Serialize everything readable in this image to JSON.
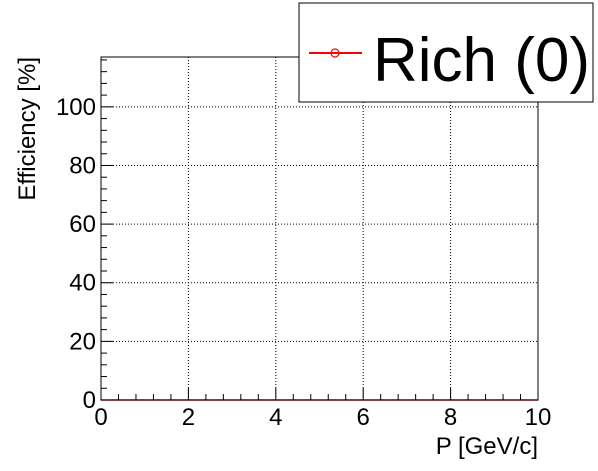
{
  "chart_data": {
    "type": "line",
    "title": "",
    "xlabel": "P [GeV/c]",
    "ylabel": "Efficiency [%]",
    "xlim": [
      0,
      10
    ],
    "ylim": [
      0,
      117
    ],
    "xticks": [
      0,
      2,
      4,
      6,
      8,
      10
    ],
    "yticks": [
      0,
      20,
      40,
      60,
      80,
      100
    ],
    "xtick_labels": [
      "0",
      "2",
      "4",
      "6",
      "8",
      "10"
    ],
    "ytick_labels": [
      "0",
      "20",
      "40",
      "60",
      "80",
      "100"
    ],
    "grid": true,
    "legend_position": "top-right",
    "series": [
      {
        "name": "Rich (0)",
        "color": "#ff0000",
        "marker": "open-circle",
        "x": [
          0,
          10
        ],
        "y": [
          0,
          0
        ]
      }
    ]
  }
}
